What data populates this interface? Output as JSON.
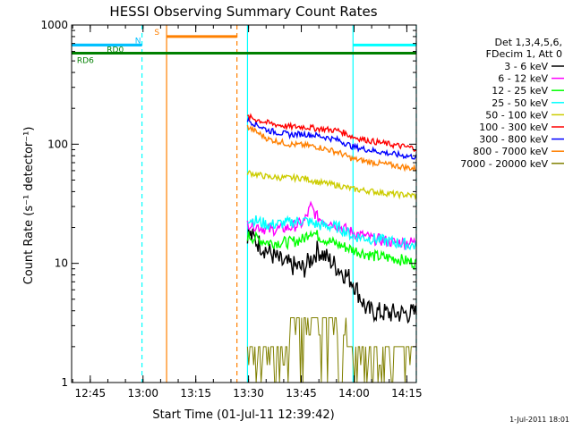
{
  "chart_data": {
    "type": "line",
    "title": "HESSI Observing Summary Count Rates",
    "xlabel": "Start Time (01-Jul-11 12:39:42)",
    "ylabel": "Count Rate (s⁻¹ detector⁻¹)",
    "yscale": "log",
    "ylim": [
      1,
      1000
    ],
    "xlim_minutes": [
      0,
      98
    ],
    "x_tick_labels": [
      "12:45",
      "13:00",
      "13:15",
      "13:30",
      "13:45",
      "14:00",
      "14:15"
    ],
    "x_tick_minutes": [
      5.3,
      20.3,
      35.3,
      50.3,
      65.3,
      80.3,
      95.3
    ],
    "y_tick_labels": [
      "1",
      "10",
      "100",
      "1000"
    ],
    "y_tick_values": [
      1,
      10,
      100,
      1000
    ],
    "legend_header": [
      "Det 1,3,4,5,6,",
      "FDecim 1, Att 0"
    ],
    "legend_position": "right",
    "series": [
      {
        "name": "3 - 6 keV",
        "color": "#000000",
        "start": 50,
        "x": [
          50,
          54,
          60,
          66,
          70,
          76,
          78,
          80,
          84,
          90,
          98
        ],
        "y": [
          18,
          14,
          10,
          9,
          13,
          9,
          8,
          7,
          4,
          3.8,
          3.8
        ]
      },
      {
        "name": "6 - 12 keV",
        "color": "#ff00ff",
        "start": 50,
        "x": [
          50,
          56,
          62,
          66,
          68,
          70,
          74,
          80,
          86,
          92,
          98
        ],
        "y": [
          22,
          19,
          20,
          22,
          30,
          24,
          22,
          18,
          16,
          15,
          15
        ]
      },
      {
        "name": "12 - 25 keV",
        "color": "#00ff00",
        "start": 50,
        "x": [
          50,
          56,
          62,
          66,
          68,
          70,
          74,
          80,
          86,
          92,
          98
        ],
        "y": [
          17,
          15,
          15,
          16,
          19,
          17,
          15,
          13,
          11.5,
          11,
          10
        ]
      },
      {
        "name": "25 - 50 keV",
        "color": "#00ffff",
        "start": 50,
        "x": [
          50,
          56,
          62,
          66,
          70,
          76,
          80,
          86,
          92,
          98
        ],
        "y": [
          24,
          21,
          22,
          23,
          21,
          20,
          17,
          16,
          15,
          14
        ]
      },
      {
        "name": "50 - 100 keV",
        "color": "#cccc00",
        "start": 50,
        "x": [
          50,
          56,
          62,
          66,
          70,
          76,
          80,
          86,
          92,
          98
        ],
        "y": [
          58,
          53,
          52,
          52,
          48,
          45,
          42,
          40,
          38,
          37
        ]
      },
      {
        "name": "100 - 300 keV",
        "color": "#ff0000",
        "start": 50,
        "x": [
          50,
          56,
          62,
          66,
          70,
          76,
          80,
          86,
          92,
          98
        ],
        "y": [
          170,
          150,
          140,
          140,
          135,
          130,
          115,
          105,
          98,
          92
        ]
      },
      {
        "name": "300 - 800 keV",
        "color": "#0000ff",
        "start": 50,
        "x": [
          50,
          56,
          62,
          66,
          70,
          76,
          80,
          86,
          92,
          98
        ],
        "y": [
          160,
          130,
          120,
          122,
          118,
          108,
          95,
          88,
          82,
          78
        ]
      },
      {
        "name": "800 - 7000 keV",
        "color": "#ff8000",
        "start": 50,
        "x": [
          50,
          56,
          62,
          66,
          70,
          76,
          80,
          86,
          92,
          98
        ],
        "y": [
          140,
          110,
          100,
          98,
          95,
          85,
          75,
          70,
          66,
          62
        ]
      },
      {
        "name": "7000 - 20000 keV",
        "color": "#808000",
        "start": 50,
        "x": [
          50,
          98
        ],
        "y": [
          2,
          2
        ]
      }
    ],
    "flags": [
      {
        "label": "RD6",
        "color": "#008000",
        "y": 580,
        "x_start": 0,
        "x_end": 98
      },
      {
        "label": "RD0",
        "color": "#00c0ff",
        "y": 680,
        "x_start": 0,
        "x_end": 20
      },
      {
        "label": "N",
        "color": "#00c0ff",
        "y": 680,
        "x_start": 0,
        "x_end": 20
      },
      {
        "label": "S",
        "color": "#ff8000",
        "y": 800,
        "x_start": 27,
        "x_end": 47
      }
    ],
    "vertical_lines": [
      {
        "x": 20,
        "color": "#00ffff",
        "style": "dashed"
      },
      {
        "x": 27,
        "color": "#ff8000",
        "style": "solid"
      },
      {
        "x": 47,
        "color": "#ff8000",
        "style": "dashed"
      },
      {
        "x": 50,
        "color": "#00ffff",
        "style": "solid"
      },
      {
        "x": 80,
        "color": "#00ffff",
        "style": "solid"
      },
      {
        "x": 98,
        "color": "#00ffff",
        "style": "dashed"
      }
    ]
  },
  "footer_date": "1-Jul-2011 18:01"
}
